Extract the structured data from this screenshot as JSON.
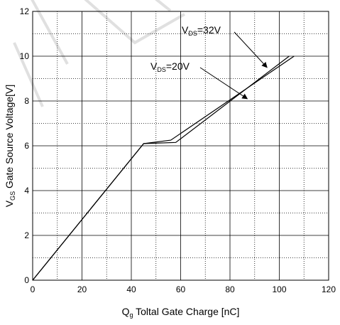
{
  "chart_data": {
    "type": "line",
    "xlabel": {
      "main": "Q",
      "sub": "g",
      "rest": " Toltal Gate Charge [nC]"
    },
    "ylabel": {
      "main": "V",
      "sub": "GS",
      "rest": " Gate Source Voltage[V]"
    },
    "xlim": [
      0,
      120
    ],
    "ylim": [
      0,
      12
    ],
    "xticks": [
      "0",
      "20",
      "40",
      "60",
      "80",
      "100",
      "120"
    ],
    "yticks": [
      "0",
      "2",
      "4",
      "6",
      "8",
      "10",
      "12"
    ],
    "grid": true,
    "series": [
      {
        "name": "VDS=20V",
        "x": [
          0,
          45,
          58,
          104
        ],
        "y": [
          0,
          6.1,
          6.15,
          10
        ]
      },
      {
        "name": "VDS=32V",
        "x": [
          0,
          45,
          56,
          106
        ],
        "y": [
          0,
          6.1,
          6.25,
          10
        ]
      }
    ],
    "annotations": [
      {
        "main": "V",
        "sub": "DS",
        "rest": "=32V",
        "series": 1,
        "target": [
          95,
          9.5
        ]
      },
      {
        "main": "V",
        "sub": "DS",
        "rest": "=20V",
        "series": 0,
        "target": [
          87,
          8.1
        ]
      }
    ]
  }
}
